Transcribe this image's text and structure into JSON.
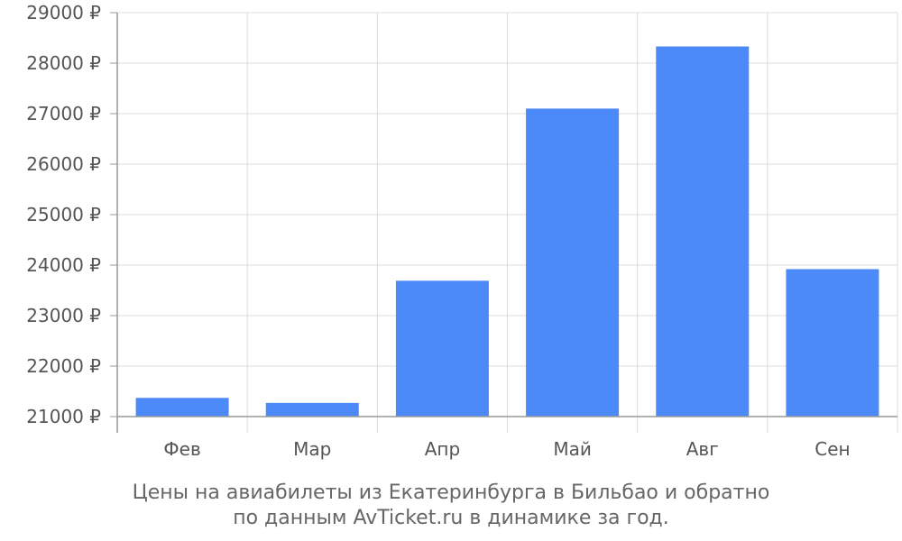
{
  "colors": {
    "bar": "#4d8af9",
    "grid": "#dddddd",
    "axis": "#999999",
    "text": "#555555"
  },
  "chart_data": {
    "type": "bar",
    "categories": [
      "Фев",
      "Мар",
      "Апр",
      "Май",
      "Авг",
      "Сен"
    ],
    "values": [
      21370,
      21270,
      23690,
      27100,
      28330,
      23920
    ],
    "ylim": [
      21000,
      29000
    ],
    "y_ticks": [
      21000,
      22000,
      23000,
      24000,
      25000,
      26000,
      27000,
      28000,
      29000
    ],
    "y_tick_labels": [
      "21000 ₽",
      "22000 ₽",
      "23000 ₽",
      "24000 ₽",
      "25000 ₽",
      "26000 ₽",
      "27000 ₽",
      "28000 ₽",
      "29000 ₽"
    ],
    "grid": true,
    "caption": [
      "Цены на авиабилеты из Екатеринбурга в Бильбао и обратно",
      "по данным AvTicket.ru в динамике за год."
    ]
  }
}
